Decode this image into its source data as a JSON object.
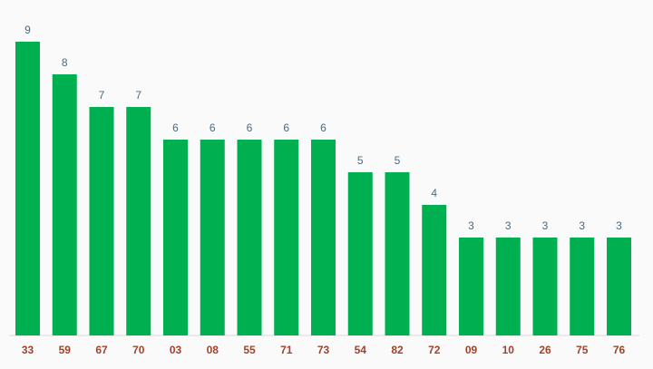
{
  "chart_data": {
    "type": "bar",
    "categories": [
      "33",
      "59",
      "67",
      "70",
      "03",
      "08",
      "55",
      "71",
      "73",
      "54",
      "82",
      "72",
      "09",
      "10",
      "26",
      "75",
      "76"
    ],
    "values": [
      9,
      8,
      7,
      7,
      6,
      6,
      6,
      6,
      6,
      5,
      5,
      4,
      3,
      3,
      3,
      3,
      3
    ],
    "ylim": [
      0,
      9
    ],
    "grid": false,
    "data_labels": true,
    "colors": {
      "bar": "#00b050",
      "value_label": "#4a6a82",
      "category_label": "#a0432c",
      "background": "#fafafa"
    }
  }
}
